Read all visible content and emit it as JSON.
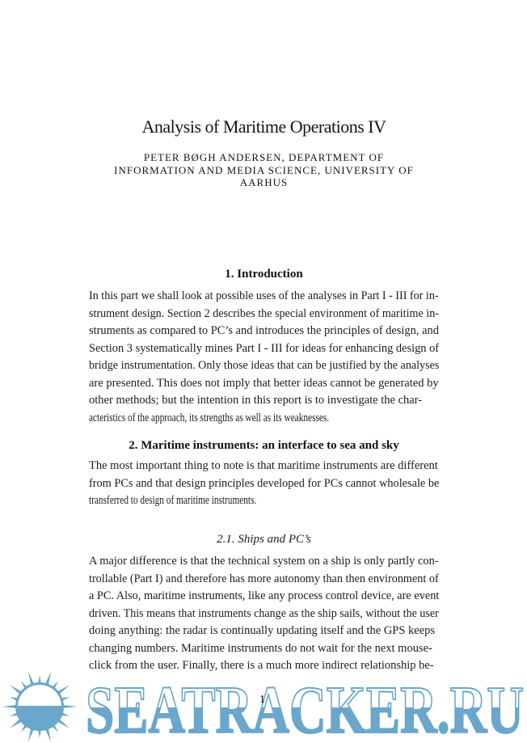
{
  "document": {
    "title": "Analysis of Maritime Operations IV",
    "author_lines": [
      "PETER BØGH ANDERSEN, DEPARTMENT OF",
      "INFORMATION AND MEDIA SCIENCE, UNIVERSITY OF",
      "AARHUS"
    ],
    "page_number": "1"
  },
  "sections": [
    {
      "heading": "1. Introduction",
      "lines": [
        "In this part we shall look at possible uses of the analyses in Part I - III for in-",
        "strument design. Section 2 describes the special environment of maritime in-",
        "struments as compared to PC’s and introduces the principles of design, and",
        "Section 3 systematically mines Part I - III for ideas for enhancing design of",
        "bridge instrumentation. Only those ideas that can be justified by the analyses",
        "are presented. This does not imply that better ideas cannot be generated by",
        "other methods; but the intention in this report is to investigate the char-",
        "acteristics of the approach, its strengths as well as its weaknesses."
      ]
    },
    {
      "heading": "2. Maritime instruments: an interface to sea and sky",
      "lines": [
        "The most important thing to note is that maritime instruments are different",
        "from PCs and that design principles developed for PCs cannot wholesale be",
        "transferred to design of maritime instruments."
      ]
    },
    {
      "heading": "2.1. Ships and PC’s",
      "lines": [
        "A major difference is that the technical system on a ship is only partly con-",
        "trollable (Part I) and therefore has more autonomy than then environment of",
        "a PC. Also, maritime instruments, like any process control device, are event",
        "driven. This means that instruments change as the ship sails, without the user",
        "doing anything: the radar is continually updating itself and the GPS keeps",
        "changing numbers. Maritime instruments do not wait for the next mouse-",
        "click from the user. Finally, there is a much more indirect relationship be-"
      ]
    }
  ],
  "watermark": {
    "text": "SEATRACKER.RU",
    "color": "#6ba6cb",
    "logo": "sun-over-sea-icon"
  }
}
